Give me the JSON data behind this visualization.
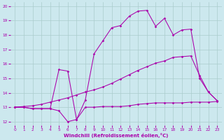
{
  "bg_color": "#cce8ee",
  "grid_color": "#aacccc",
  "line_color": "#aa00aa",
  "xlabel": "Windchill (Refroidissement éolien,°C)",
  "xlim": [
    -0.5,
    23.5
  ],
  "ylim": [
    11.75,
    20.25
  ],
  "yticks": [
    12,
    13,
    14,
    15,
    16,
    17,
    18,
    19,
    20
  ],
  "xticks": [
    0,
    1,
    2,
    3,
    4,
    5,
    6,
    7,
    8,
    9,
    10,
    11,
    12,
    13,
    14,
    15,
    16,
    17,
    18,
    19,
    20,
    21,
    22,
    23
  ],
  "line1_x": [
    0,
    1,
    2,
    3,
    4,
    5,
    6,
    7,
    8,
    9,
    10,
    11,
    12,
    13,
    14,
    15,
    16,
    17,
    18,
    19,
    20,
    21,
    22,
    23
  ],
  "line1_y": [
    13.0,
    13.0,
    12.9,
    12.9,
    12.9,
    12.75,
    12.0,
    12.15,
    13.0,
    13.0,
    13.05,
    13.05,
    13.05,
    13.1,
    13.2,
    13.25,
    13.3,
    13.3,
    13.3,
    13.3,
    13.35,
    13.35,
    13.35,
    13.4
  ],
  "line2_x": [
    0,
    1,
    2,
    3,
    4,
    5,
    6,
    7,
    8,
    9,
    10,
    11,
    12,
    13,
    14,
    15,
    16,
    17,
    18,
    19,
    20,
    21,
    22,
    23
  ],
  "line2_y": [
    13.0,
    13.05,
    13.1,
    13.2,
    13.35,
    13.5,
    13.65,
    13.85,
    14.05,
    14.2,
    14.4,
    14.65,
    14.95,
    15.25,
    15.55,
    15.8,
    16.05,
    16.2,
    16.45,
    16.5,
    16.55,
    15.2,
    14.05,
    13.45
  ],
  "line3_x": [
    0,
    1,
    2,
    3,
    4,
    5,
    6,
    7,
    8,
    9,
    10,
    11,
    12,
    13,
    14,
    15,
    16,
    17,
    18,
    19,
    20,
    21,
    22,
    23
  ],
  "line3_y": [
    13.0,
    13.0,
    12.9,
    12.9,
    12.9,
    15.6,
    15.5,
    12.15,
    13.5,
    16.7,
    17.6,
    18.5,
    18.65,
    19.3,
    19.65,
    19.7,
    18.6,
    19.15,
    18.0,
    18.35,
    18.4,
    15.0,
    14.05,
    13.45
  ]
}
